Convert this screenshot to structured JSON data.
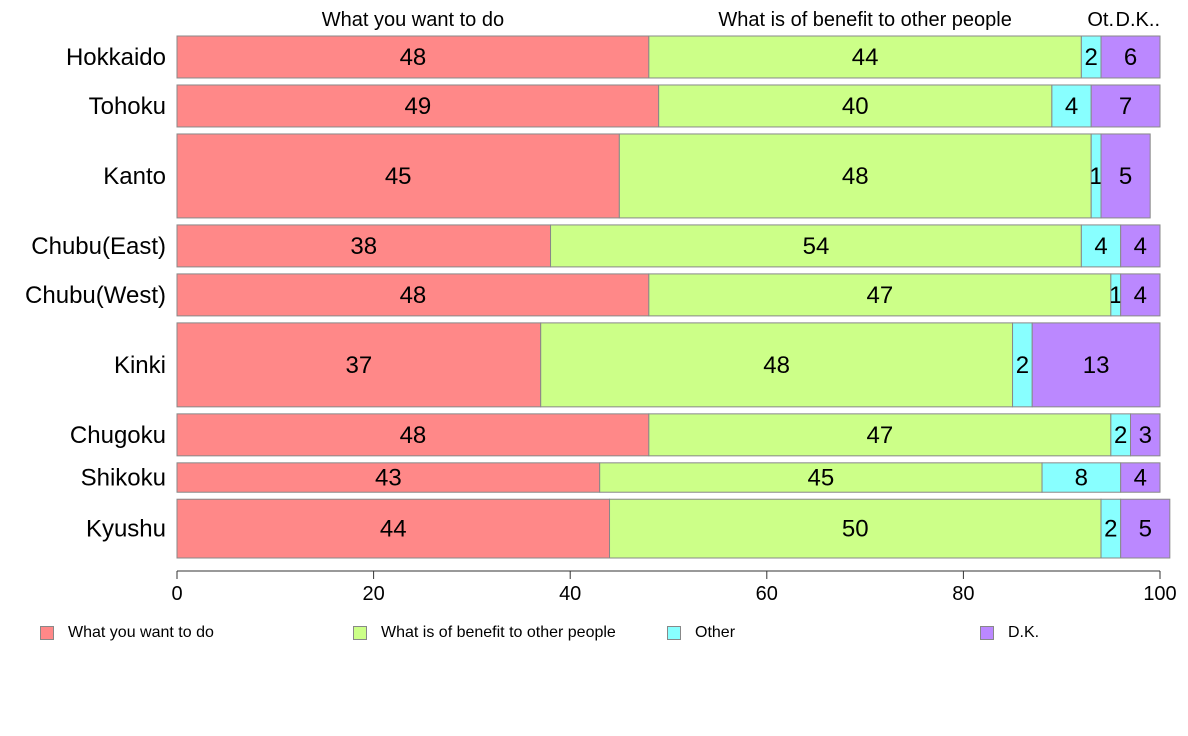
{
  "chart_data": {
    "type": "bar",
    "orientation": "horizontal",
    "stacked": true,
    "categories": [
      "Hokkaido",
      "Tohoku",
      "Kanto",
      "Chubu(East)",
      "Chubu(West)",
      "Kinki",
      "Chugoku",
      "Shikoku",
      "Kyushu"
    ],
    "series": [
      {
        "name": "What you want to do",
        "color": "#ff8888",
        "values": [
          48,
          49,
          45,
          38,
          48,
          37,
          48,
          43,
          44
        ]
      },
      {
        "name": "What is of benefit to other people",
        "color": "#ccff88",
        "values": [
          44,
          40,
          48,
          54,
          47,
          48,
          47,
          45,
          50
        ]
      },
      {
        "name": "Other",
        "color": "#88ffff",
        "values": [
          2,
          4,
          1,
          4,
          1,
          2,
          2,
          8,
          2
        ]
      },
      {
        "name": "D.K.",
        "color": "#bb88ff",
        "values": [
          6,
          7,
          5,
          4,
          4,
          13,
          3,
          4,
          5
        ]
      }
    ],
    "column_headers": [
      "What you want to do",
      "What is of benefit to other people",
      "Ot.",
      "D.K.."
    ],
    "xlim": [
      0,
      100
    ],
    "xticks": [
      "0",
      "20",
      "40",
      "60",
      "80",
      "100"
    ],
    "relative_widths": [
      1.0,
      1.0,
      2.0,
      1.0,
      1.0,
      2.0,
      1.0,
      0.7,
      1.4
    ],
    "legend_position": "bottom"
  }
}
